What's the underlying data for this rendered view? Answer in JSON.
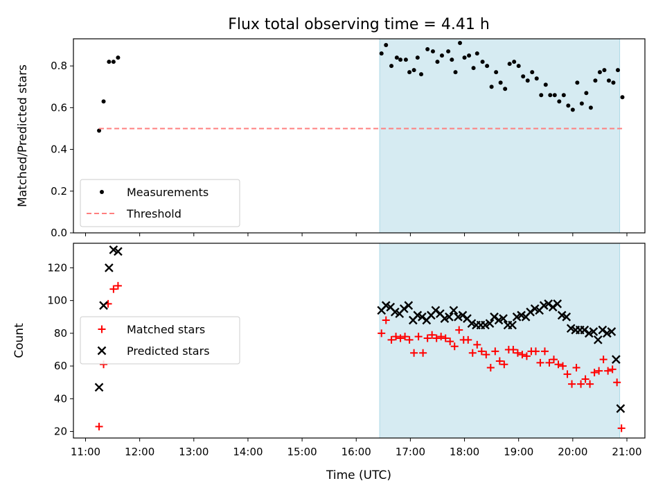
{
  "chart_data": {
    "title": "Flux total observing time = 4.41 h",
    "xlabel": "Time (UTC)",
    "x_ticks": [
      "11:00",
      "12:00",
      "13:00",
      "14:00",
      "15:00",
      "16:00",
      "17:00",
      "18:00",
      "19:00",
      "20:00",
      "21:00"
    ],
    "highlight_span": {
      "start": "16:26",
      "end": "20:52",
      "color": "#add8e6"
    },
    "panels": [
      {
        "type": "scatter",
        "ylabel": "Matched/Predicted stars",
        "ylim": [
          0,
          0.93
        ],
        "y_ticks": [
          0.0,
          0.2,
          0.4,
          0.6,
          0.8
        ],
        "legend": "bottom-left",
        "series": [
          {
            "name": "Measurements",
            "marker": "dot",
            "color": "#000000",
            "points": [
              [
                "11:15",
                0.49
              ],
              [
                "11:20",
                0.63
              ],
              [
                "11:26",
                0.82
              ],
              [
                "11:31",
                0.82
              ],
              [
                "11:36",
                0.84
              ],
              [
                "16:28",
                0.86
              ],
              [
                "16:33",
                0.9
              ],
              [
                "16:39",
                0.8
              ],
              [
                "16:45",
                0.84
              ],
              [
                "16:49",
                0.83
              ],
              [
                "16:55",
                0.83
              ],
              [
                "16:59",
                0.77
              ],
              [
                "17:04",
                0.78
              ],
              [
                "17:08",
                0.84
              ],
              [
                "17:12",
                0.76
              ],
              [
                "17:19",
                0.88
              ],
              [
                "17:25",
                0.87
              ],
              [
                "17:30",
                0.82
              ],
              [
                "17:35",
                0.85
              ],
              [
                "17:42",
                0.87
              ],
              [
                "17:46",
                0.83
              ],
              [
                "17:50",
                0.77
              ],
              [
                "17:55",
                0.91
              ],
              [
                "18:00",
                0.84
              ],
              [
                "18:05",
                0.85
              ],
              [
                "18:10",
                0.79
              ],
              [
                "18:14",
                0.86
              ],
              [
                "18:20",
                0.82
              ],
              [
                "18:25",
                0.8
              ],
              [
                "18:30",
                0.7
              ],
              [
                "18:35",
                0.77
              ],
              [
                "18:40",
                0.72
              ],
              [
                "18:45",
                0.69
              ],
              [
                "18:50",
                0.81
              ],
              [
                "18:55",
                0.82
              ],
              [
                "19:00",
                0.8
              ],
              [
                "19:05",
                0.75
              ],
              [
                "19:10",
                0.73
              ],
              [
                "19:15",
                0.77
              ],
              [
                "19:20",
                0.74
              ],
              [
                "19:25",
                0.66
              ],
              [
                "19:30",
                0.71
              ],
              [
                "19:35",
                0.66
              ],
              [
                "19:40",
                0.66
              ],
              [
                "19:45",
                0.63
              ],
              [
                "19:50",
                0.66
              ],
              [
                "19:55",
                0.61
              ],
              [
                "20:00",
                0.59
              ],
              [
                "20:05",
                0.72
              ],
              [
                "20:10",
                0.62
              ],
              [
                "20:15",
                0.67
              ],
              [
                "20:20",
                0.6
              ],
              [
                "20:25",
                0.73
              ],
              [
                "20:30",
                0.77
              ],
              [
                "20:35",
                0.78
              ],
              [
                "20:40",
                0.73
              ],
              [
                "20:45",
                0.72
              ],
              [
                "20:50",
                0.78
              ],
              [
                "20:55",
                0.65
              ]
            ]
          },
          {
            "name": "Threshold",
            "marker": "dashed-line",
            "color": "#ff7f7f",
            "points": [
              [
                "11:15",
                0.5
              ],
              [
                "20:55",
                0.5
              ]
            ]
          }
        ]
      },
      {
        "type": "scatter",
        "ylabel": "Count",
        "ylim": [
          16,
          135
        ],
        "y_ticks": [
          20,
          40,
          60,
          80,
          100,
          120
        ],
        "legend": "center-left",
        "series": [
          {
            "name": "Matched stars",
            "marker": "plus",
            "color": "#ff0000",
            "points": [
              [
                "11:15",
                23
              ],
              [
                "11:20",
                61
              ],
              [
                "11:25",
                98
              ],
              [
                "11:31",
                107
              ],
              [
                "11:36",
                109
              ],
              [
                "16:28",
                80
              ],
              [
                "16:33",
                88
              ],
              [
                "16:39",
                76
              ],
              [
                "16:44",
                78
              ],
              [
                "16:49",
                77
              ],
              [
                "16:54",
                78
              ],
              [
                "16:59",
                76
              ],
              [
                "17:04",
                68
              ],
              [
                "17:09",
                78
              ],
              [
                "17:14",
                68
              ],
              [
                "17:19",
                77
              ],
              [
                "17:24",
                79
              ],
              [
                "17:29",
                77
              ],
              [
                "17:34",
                78
              ],
              [
                "17:39",
                77
              ],
              [
                "17:44",
                75
              ],
              [
                "17:49",
                72
              ],
              [
                "17:54",
                82
              ],
              [
                "17:59",
                76
              ],
              [
                "18:04",
                76
              ],
              [
                "18:09",
                68
              ],
              [
                "18:14",
                73
              ],
              [
                "18:19",
                69
              ],
              [
                "18:24",
                67
              ],
              [
                "18:29",
                59
              ],
              [
                "18:34",
                69
              ],
              [
                "18:39",
                63
              ],
              [
                "18:44",
                61
              ],
              [
                "18:49",
                70
              ],
              [
                "18:54",
                70
              ],
              [
                "18:59",
                68
              ],
              [
                "19:04",
                67
              ],
              [
                "19:09",
                66
              ],
              [
                "19:14",
                69
              ],
              [
                "19:19",
                69
              ],
              [
                "19:24",
                62
              ],
              [
                "19:29",
                69
              ],
              [
                "19:34",
                62
              ],
              [
                "19:39",
                64
              ],
              [
                "19:44",
                61
              ],
              [
                "19:49",
                60
              ],
              [
                "19:54",
                55
              ],
              [
                "19:59",
                49
              ],
              [
                "20:04",
                59
              ],
              [
                "20:09",
                49
              ],
              [
                "20:14",
                52
              ],
              [
                "20:19",
                49
              ],
              [
                "20:24",
                56
              ],
              [
                "20:29",
                57
              ],
              [
                "20:34",
                64
              ],
              [
                "20:39",
                57
              ],
              [
                "20:44",
                58
              ],
              [
                "20:49",
                50
              ],
              [
                "20:54",
                22
              ]
            ]
          },
          {
            "name": "Predicted stars",
            "marker": "x",
            "color": "#000000",
            "points": [
              [
                "11:15",
                47
              ],
              [
                "11:20",
                97
              ],
              [
                "11:26",
                120
              ],
              [
                "11:31",
                131
              ],
              [
                "11:36",
                130
              ],
              [
                "16:28",
                94
              ],
              [
                "16:33",
                97
              ],
              [
                "16:38",
                96
              ],
              [
                "16:43",
                93
              ],
              [
                "16:48",
                92
              ],
              [
                "16:53",
                95
              ],
              [
                "16:58",
                97
              ],
              [
                "17:03",
                88
              ],
              [
                "17:08",
                91
              ],
              [
                "17:13",
                90
              ],
              [
                "17:18",
                88
              ],
              [
                "17:23",
                91
              ],
              [
                "17:28",
                94
              ],
              [
                "17:33",
                92
              ],
              [
                "17:38",
                89
              ],
              [
                "17:43",
                90
              ],
              [
                "17:48",
                94
              ],
              [
                "17:53",
                90
              ],
              [
                "17:58",
                91
              ],
              [
                "18:03",
                89
              ],
              [
                "18:08",
                86
              ],
              [
                "18:13",
                85
              ],
              [
                "18:18",
                85
              ],
              [
                "18:23",
                85
              ],
              [
                "18:28",
                86
              ],
              [
                "18:33",
                90
              ],
              [
                "18:38",
                88
              ],
              [
                "18:43",
                89
              ],
              [
                "18:48",
                85
              ],
              [
                "18:53",
                85
              ],
              [
                "18:58",
                90
              ],
              [
                "19:03",
                91
              ],
              [
                "19:08",
                90
              ],
              [
                "19:13",
                93
              ],
              [
                "19:18",
                95
              ],
              [
                "19:23",
                94
              ],
              [
                "19:28",
                97
              ],
              [
                "19:33",
                98
              ],
              [
                "19:38",
                96
              ],
              [
                "19:43",
                98
              ],
              [
                "19:48",
                91
              ],
              [
                "19:53",
                90
              ],
              [
                "19:58",
                83
              ],
              [
                "20:03",
                82
              ],
              [
                "20:08",
                82
              ],
              [
                "20:13",
                82
              ],
              [
                "20:18",
                80
              ],
              [
                "20:23",
                81
              ],
              [
                "20:28",
                76
              ],
              [
                "20:33",
                82
              ],
              [
                "20:38",
                80
              ],
              [
                "20:43",
                81
              ],
              [
                "20:48",
                64
              ],
              [
                "20:53",
                34
              ]
            ]
          }
        ]
      }
    ]
  }
}
